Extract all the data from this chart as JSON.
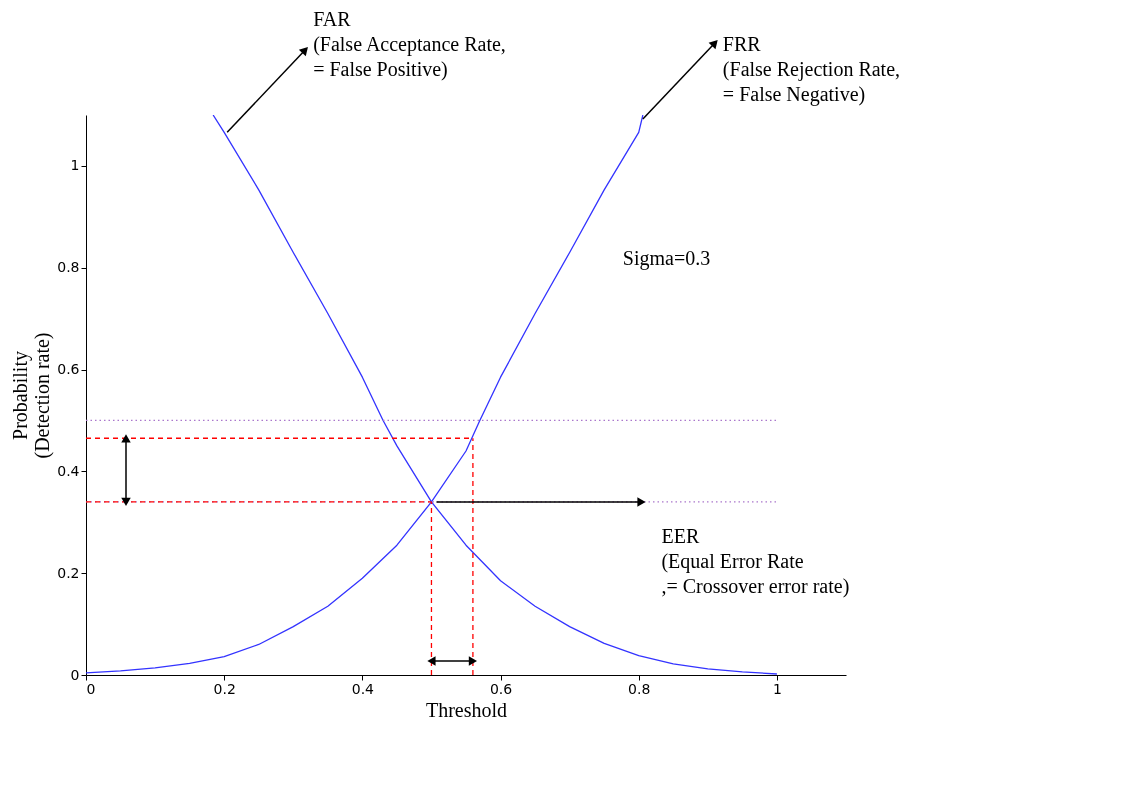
{
  "chart_data": {
    "type": "line",
    "xlabel": "Threshold",
    "ylabel": "Probability\n(Detection rate)",
    "xlim": [
      0,
      1.1
    ],
    "ylim": [
      0,
      1.1
    ],
    "xticks": [
      0,
      0.2,
      0.4,
      0.6,
      0.8,
      1
    ],
    "yticks": [
      0,
      0.2,
      0.4,
      0.6,
      0.8,
      1
    ],
    "grid": false,
    "marker": "none",
    "annotations": [
      "FAR\n(False Acceptance Rate,\n= False Positive)",
      "FRR\n(False Rejection Rate,\n= False Negative)",
      "Sigma=0.3",
      "EER\n(Equal Error Rate\n,= Crossover error rate)"
    ],
    "series": [
      {
        "color": "#3333ff",
        "line_style": "solid",
        "x": [
          0.184,
          0.2,
          0.25,
          0.3,
          0.35,
          0.4,
          0.43,
          0.45,
          0.5,
          0.55,
          0.6,
          0.65,
          0.7,
          0.75,
          0.8,
          0.85,
          0.9,
          0.95,
          1.0
        ],
        "values": [
          1.1,
          1.066,
          0.953,
          0.83,
          0.71,
          0.585,
          0.5,
          0.45,
          0.34,
          0.255,
          0.185,
          0.135,
          0.095,
          0.062,
          0.038,
          0.022,
          0.012,
          0.006,
          0.002
        ]
      },
      {
        "color": "#3333ff",
        "line_style": "solid",
        "x": [
          0,
          0.05,
          0.1,
          0.15,
          0.2,
          0.25,
          0.3,
          0.35,
          0.4,
          0.45,
          0.5,
          0.55,
          0.57,
          0.6,
          0.65,
          0.7,
          0.75,
          0.8,
          0.806
        ],
        "values": [
          0.004,
          0.008,
          0.014,
          0.023,
          0.036,
          0.06,
          0.095,
          0.135,
          0.19,
          0.255,
          0.34,
          0.44,
          0.5,
          0.585,
          0.71,
          0.83,
          0.953,
          1.066,
          1.1
        ]
      },
      {
        "color": "#aa77cc",
        "line_style": "dotted",
        "x": [
          0,
          1
        ],
        "values": [
          0.5,
          0.5
        ]
      },
      {
        "color": "#aa77cc",
        "line_style": "dotted",
        "x": [
          0,
          1
        ],
        "values": [
          0.34,
          0.34
        ]
      },
      {
        "color": "#ff0000",
        "line_style": "dashed",
        "x": [
          0,
          0.56
        ],
        "values": [
          0.465,
          0.465
        ]
      },
      {
        "color": "#ff0000",
        "line_style": "dashed",
        "x": [
          0,
          0.5
        ],
        "values": [
          0.34,
          0.34
        ]
      },
      {
        "color": "#ff0000",
        "line_style": "dashed",
        "x": [
          0.5,
          0.5
        ],
        "values": [
          0,
          0.34
        ]
      },
      {
        "color": "#ff0000",
        "line_style": "dashed",
        "x": [
          0.56,
          0.56
        ],
        "values": [
          0,
          0.465
        ]
      }
    ]
  }
}
